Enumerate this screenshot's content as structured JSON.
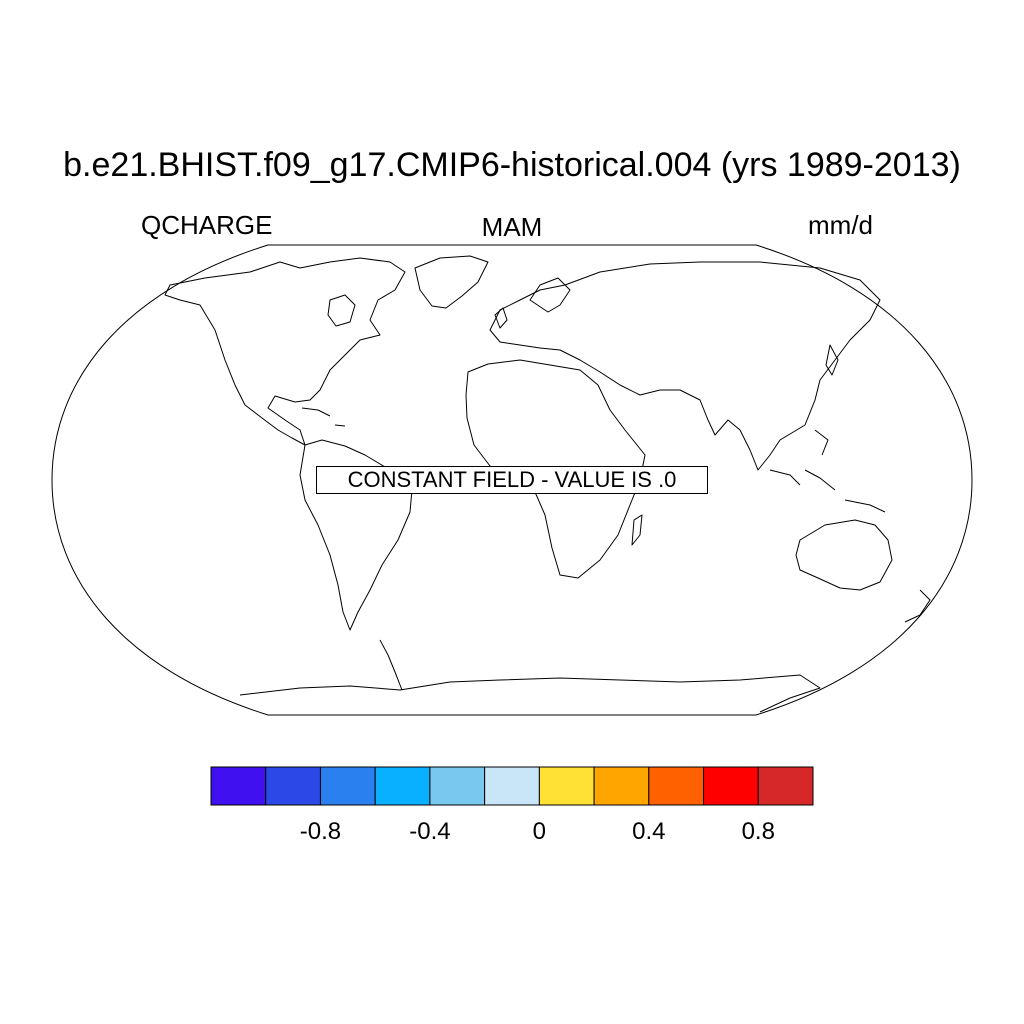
{
  "title": "b.e21.BHIST.f09_g17.CMIP6-historical.004 (yrs 1989-2013)",
  "variable": "QCHARGE",
  "season": "MAM",
  "units": "mm/d",
  "message": "CONSTANT FIELD - VALUE IS .0",
  "projection": "robinson",
  "colorbar": {
    "colors": [
      "#4010f0",
      "#2c49e8",
      "#2b80f0",
      "#08b0ff",
      "#78c8f0",
      "#c8e6f8",
      "#ffe135",
      "#ffa500",
      "#ff6000",
      "#ff0000",
      "#d62828"
    ],
    "tick_labels": [
      "-0.8",
      "-0.4",
      "0",
      "0.4",
      "0.8"
    ],
    "tick_values": [
      -0.8,
      -0.4,
      0,
      0.4,
      0.8
    ],
    "levels": [
      -1.0,
      -0.8,
      -0.6,
      -0.4,
      -0.2,
      0.0,
      0.2,
      0.4,
      0.6,
      0.8,
      1.0
    ]
  }
}
